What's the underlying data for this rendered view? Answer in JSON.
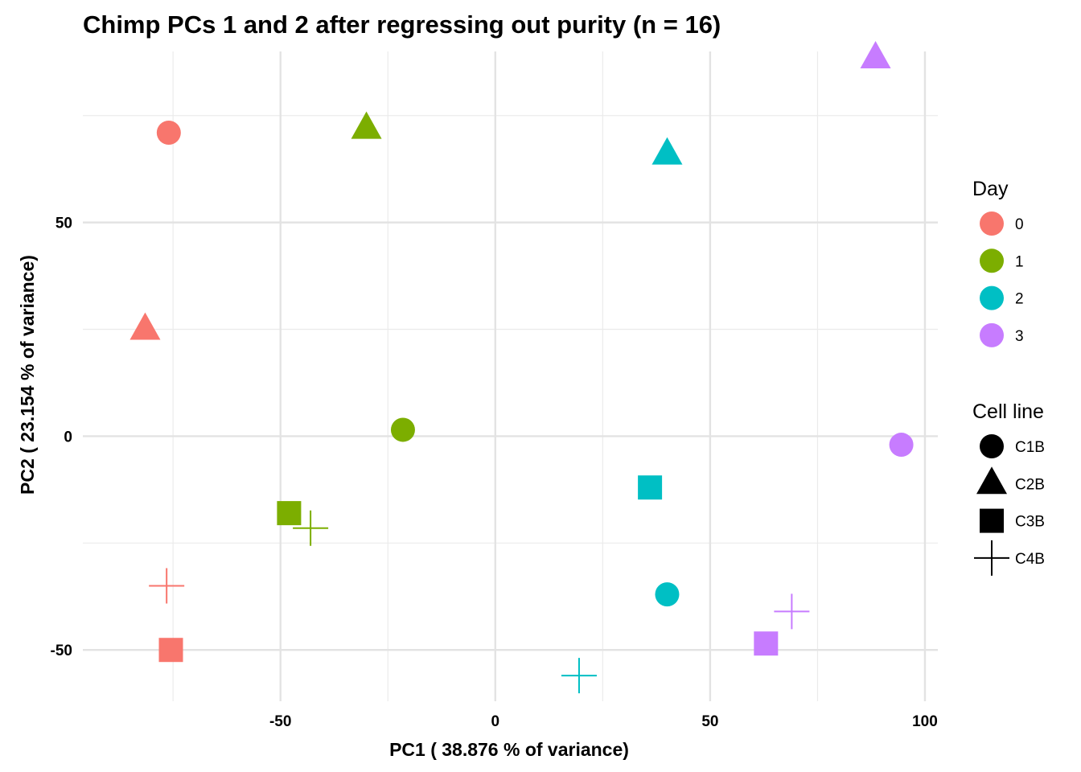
{
  "chart_data": {
    "type": "scatter",
    "title": "Chimp PCs 1 and 2 after regressing out purity (n = 16)",
    "xlabel": "PC1 ( 38.876 % of variance)",
    "ylabel": "PC2 ( 23.154 % of variance)",
    "xlim": [
      -96,
      103
    ],
    "ylim": [
      -62,
      90
    ],
    "x_ticks": [
      -50,
      0,
      50,
      100
    ],
    "x_tick_labels": [
      "-50",
      "0",
      "50",
      "100"
    ],
    "y_ticks": [
      -50,
      0,
      50
    ],
    "y_tick_labels": [
      "-50",
      "0",
      "50"
    ],
    "grid": true,
    "legend_position": "right",
    "color_legend": {
      "title": "Day",
      "items": [
        {
          "label": "0",
          "color": "#F8766D"
        },
        {
          "label": "1",
          "color": "#7CAE00"
        },
        {
          "label": "2",
          "color": "#00BFC4"
        },
        {
          "label": "3",
          "color": "#C77CFF"
        }
      ]
    },
    "shape_legend": {
      "title": "Cell line",
      "items": [
        {
          "label": "C1B",
          "shape": "circle"
        },
        {
          "label": "C2B",
          "shape": "triangle"
        },
        {
          "label": "C3B",
          "shape": "square"
        },
        {
          "label": "C4B",
          "shape": "plus"
        }
      ]
    },
    "points": [
      {
        "x": -76,
        "y": 71,
        "day": "0",
        "cell_line": "C1B"
      },
      {
        "x": -81.5,
        "y": 25,
        "day": "0",
        "cell_line": "C2B"
      },
      {
        "x": -75.5,
        "y": -50,
        "day": "0",
        "cell_line": "C3B"
      },
      {
        "x": -76.5,
        "y": -35,
        "day": "0",
        "cell_line": "C4B"
      },
      {
        "x": -21.5,
        "y": 1.5,
        "day": "1",
        "cell_line": "C1B"
      },
      {
        "x": -30,
        "y": 72,
        "day": "1",
        "cell_line": "C2B"
      },
      {
        "x": -48,
        "y": -18,
        "day": "1",
        "cell_line": "C3B"
      },
      {
        "x": -43,
        "y": -21.5,
        "day": "1",
        "cell_line": "C4B"
      },
      {
        "x": 40,
        "y": -37,
        "day": "2",
        "cell_line": "C1B"
      },
      {
        "x": 40,
        "y": 66,
        "day": "2",
        "cell_line": "C2B"
      },
      {
        "x": 36,
        "y": -12,
        "day": "2",
        "cell_line": "C3B"
      },
      {
        "x": 19.5,
        "y": -56,
        "day": "2",
        "cell_line": "C4B"
      },
      {
        "x": 94.5,
        "y": -2,
        "day": "3",
        "cell_line": "C1B"
      },
      {
        "x": 88.5,
        "y": 88.5,
        "day": "3",
        "cell_line": "C2B"
      },
      {
        "x": 63,
        "y": -48.5,
        "day": "3",
        "cell_line": "C3B"
      },
      {
        "x": 69,
        "y": -41,
        "day": "3",
        "cell_line": "C4B"
      }
    ]
  }
}
